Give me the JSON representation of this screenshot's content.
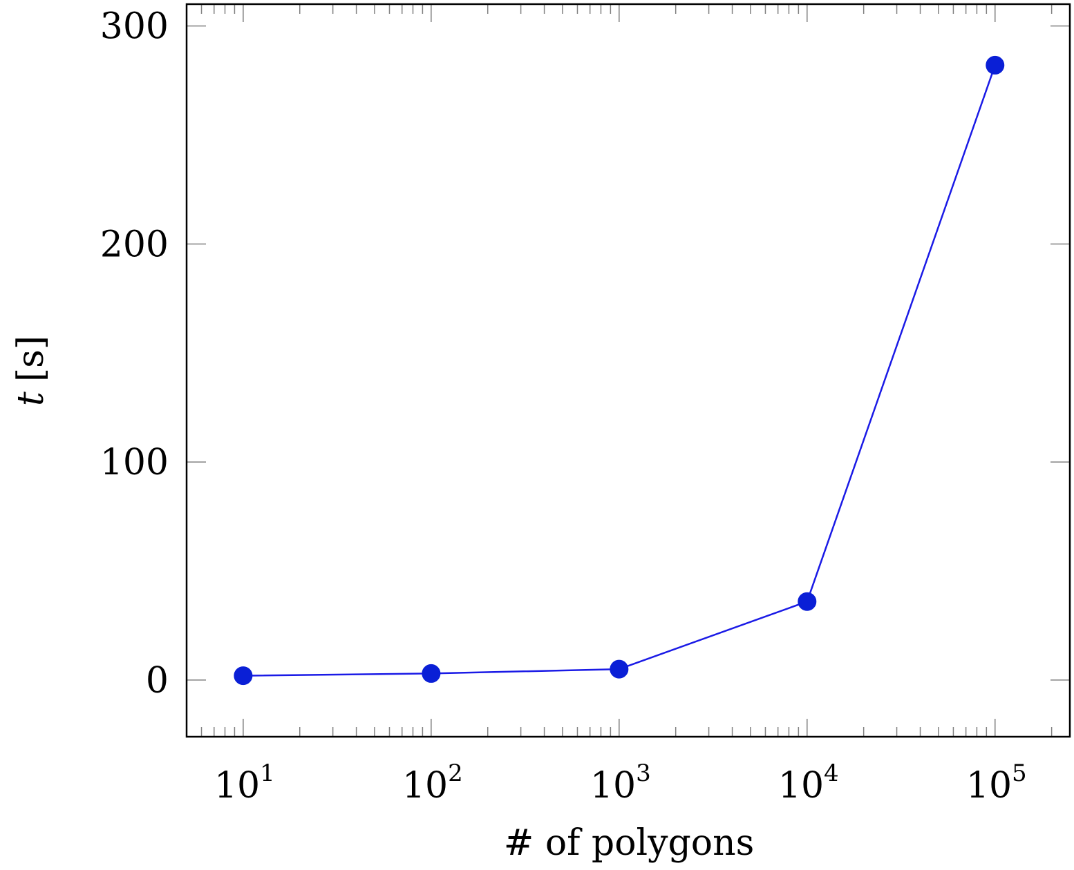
{
  "chart_data": {
    "type": "line",
    "xscale": "log",
    "xlabel": "# of polygons",
    "ylabel_var": "t",
    "ylabel_unit": "[s]",
    "xlim": [
      5,
      250000
    ],
    "ylim": [
      -26,
      310
    ],
    "x_ticks": [
      {
        "value": 10,
        "base": "10",
        "exp": "1"
      },
      {
        "value": 100,
        "base": "10",
        "exp": "2"
      },
      {
        "value": 1000,
        "base": "10",
        "exp": "3"
      },
      {
        "value": 10000,
        "base": "10",
        "exp": "4"
      },
      {
        "value": 100000,
        "base": "10",
        "exp": "5"
      }
    ],
    "y_ticks": [
      0,
      100,
      200,
      300
    ],
    "series": [
      {
        "color": "#1a1ae6",
        "marker_color": "#0a1fd6",
        "x": [
          10,
          100,
          1000,
          10000,
          100000
        ],
        "y": [
          2,
          3,
          5,
          36,
          282
        ]
      }
    ],
    "grid": false,
    "legend": "none"
  }
}
